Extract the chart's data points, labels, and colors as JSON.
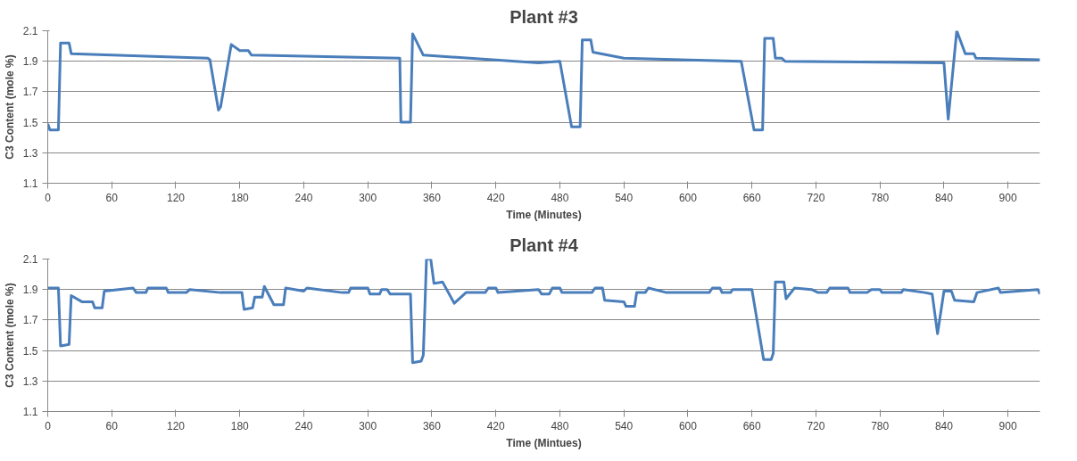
{
  "chart_data": [
    {
      "type": "line",
      "title": "Plant #3",
      "xlabel": "Time (Minutes)",
      "ylabel": "C3 Content (mole %)",
      "xlim": [
        0,
        930
      ],
      "ylim": [
        1.1,
        2.1
      ],
      "xticks": [
        0,
        60,
        120,
        180,
        240,
        300,
        360,
        420,
        480,
        540,
        600,
        660,
        720,
        780,
        840,
        900
      ],
      "yticks": [
        1.1,
        1.3,
        1.5,
        1.7,
        1.9,
        2.1
      ],
      "grid": "y",
      "line_style": "solid",
      "marker": "none",
      "series": [
        {
          "color": "#4a7ebb",
          "x": [
            0,
            2,
            10,
            12,
            20,
            22,
            150,
            152,
            160,
            162,
            172,
            180,
            188,
            191,
            330,
            331,
            340,
            342,
            352,
            460,
            480,
            491,
            499,
            501,
            509,
            511,
            540,
            650,
            662,
            670,
            672,
            680,
            682,
            688,
            691,
            840,
            844,
            852,
            860,
            868,
            870,
            930
          ],
          "values": [
            1.49,
            1.45,
            1.45,
            2.02,
            2.02,
            1.95,
            1.92,
            1.91,
            1.58,
            1.6,
            2.01,
            1.97,
            1.97,
            1.94,
            1.92,
            1.5,
            1.5,
            2.08,
            1.94,
            1.89,
            1.9,
            1.47,
            1.47,
            2.04,
            2.04,
            1.96,
            1.92,
            1.9,
            1.45,
            1.45,
            2.05,
            2.05,
            1.92,
            1.92,
            1.9,
            1.89,
            1.52,
            2.1,
            1.95,
            1.95,
            1.92,
            1.91
          ]
        }
      ]
    },
    {
      "type": "line",
      "title": "Plant #4",
      "xlabel": "Time (Mintues)",
      "ylabel": "C3 Content (mole %)",
      "xlim": [
        0,
        930
      ],
      "ylim": [
        1.1,
        2.1
      ],
      "xticks": [
        0,
        60,
        120,
        180,
        240,
        300,
        360,
        420,
        480,
        540,
        600,
        660,
        720,
        780,
        840,
        900
      ],
      "yticks": [
        1.1,
        1.3,
        1.5,
        1.7,
        1.9,
        2.1
      ],
      "grid": "y",
      "line_style": "solid",
      "marker": "none",
      "series": [
        {
          "color": "#4a7ebb",
          "x": [
            0,
            10,
            12,
            20,
            22,
            32,
            42,
            44,
            51,
            53,
            80,
            83,
            92,
            94,
            111,
            113,
            130,
            133,
            162,
            182,
            184,
            192,
            194,
            201,
            203,
            212,
            221,
            223,
            240,
            243,
            276,
            282,
            284,
            300,
            302,
            311,
            313,
            318,
            321,
            340,
            342,
            350,
            352,
            355,
            359,
            362,
            370,
            381,
            392,
            410,
            413,
            420,
            422,
            460,
            463,
            470,
            473,
            480,
            482,
            510,
            513,
            520,
            522,
            540,
            542,
            550,
            552,
            560,
            563,
            580,
            620,
            623,
            630,
            632,
            640,
            642,
            660,
            671,
            678,
            680,
            682,
            690,
            692,
            700,
            716,
            722,
            730,
            733,
            750,
            752,
            768,
            772,
            780,
            782,
            800,
            802,
            822,
            829,
            834,
            840,
            847,
            850,
            868,
            871,
            891,
            893,
            928,
            930
          ],
          "values": [
            1.91,
            1.91,
            1.53,
            1.54,
            1.86,
            1.82,
            1.82,
            1.78,
            1.78,
            1.89,
            1.91,
            1.88,
            1.88,
            1.91,
            1.91,
            1.88,
            1.88,
            1.9,
            1.88,
            1.88,
            1.77,
            1.78,
            1.85,
            1.85,
            1.92,
            1.8,
            1.8,
            1.91,
            1.89,
            1.91,
            1.88,
            1.88,
            1.91,
            1.91,
            1.87,
            1.87,
            1.9,
            1.9,
            1.87,
            1.87,
            1.42,
            1.43,
            1.47,
            2.1,
            2.1,
            1.94,
            1.95,
            1.81,
            1.88,
            1.88,
            1.91,
            1.91,
            1.88,
            1.9,
            1.87,
            1.87,
            1.91,
            1.91,
            1.88,
            1.88,
            1.91,
            1.91,
            1.83,
            1.82,
            1.79,
            1.79,
            1.88,
            1.88,
            1.91,
            1.88,
            1.88,
            1.91,
            1.91,
            1.88,
            1.88,
            1.9,
            1.9,
            1.44,
            1.44,
            1.48,
            1.95,
            1.95,
            1.84,
            1.91,
            1.9,
            1.88,
            1.88,
            1.91,
            1.91,
            1.88,
            1.88,
            1.9,
            1.9,
            1.88,
            1.88,
            1.9,
            1.88,
            1.87,
            1.61,
            1.89,
            1.89,
            1.83,
            1.82,
            1.88,
            1.91,
            1.88,
            1.9,
            1.87
          ]
        }
      ]
    }
  ]
}
